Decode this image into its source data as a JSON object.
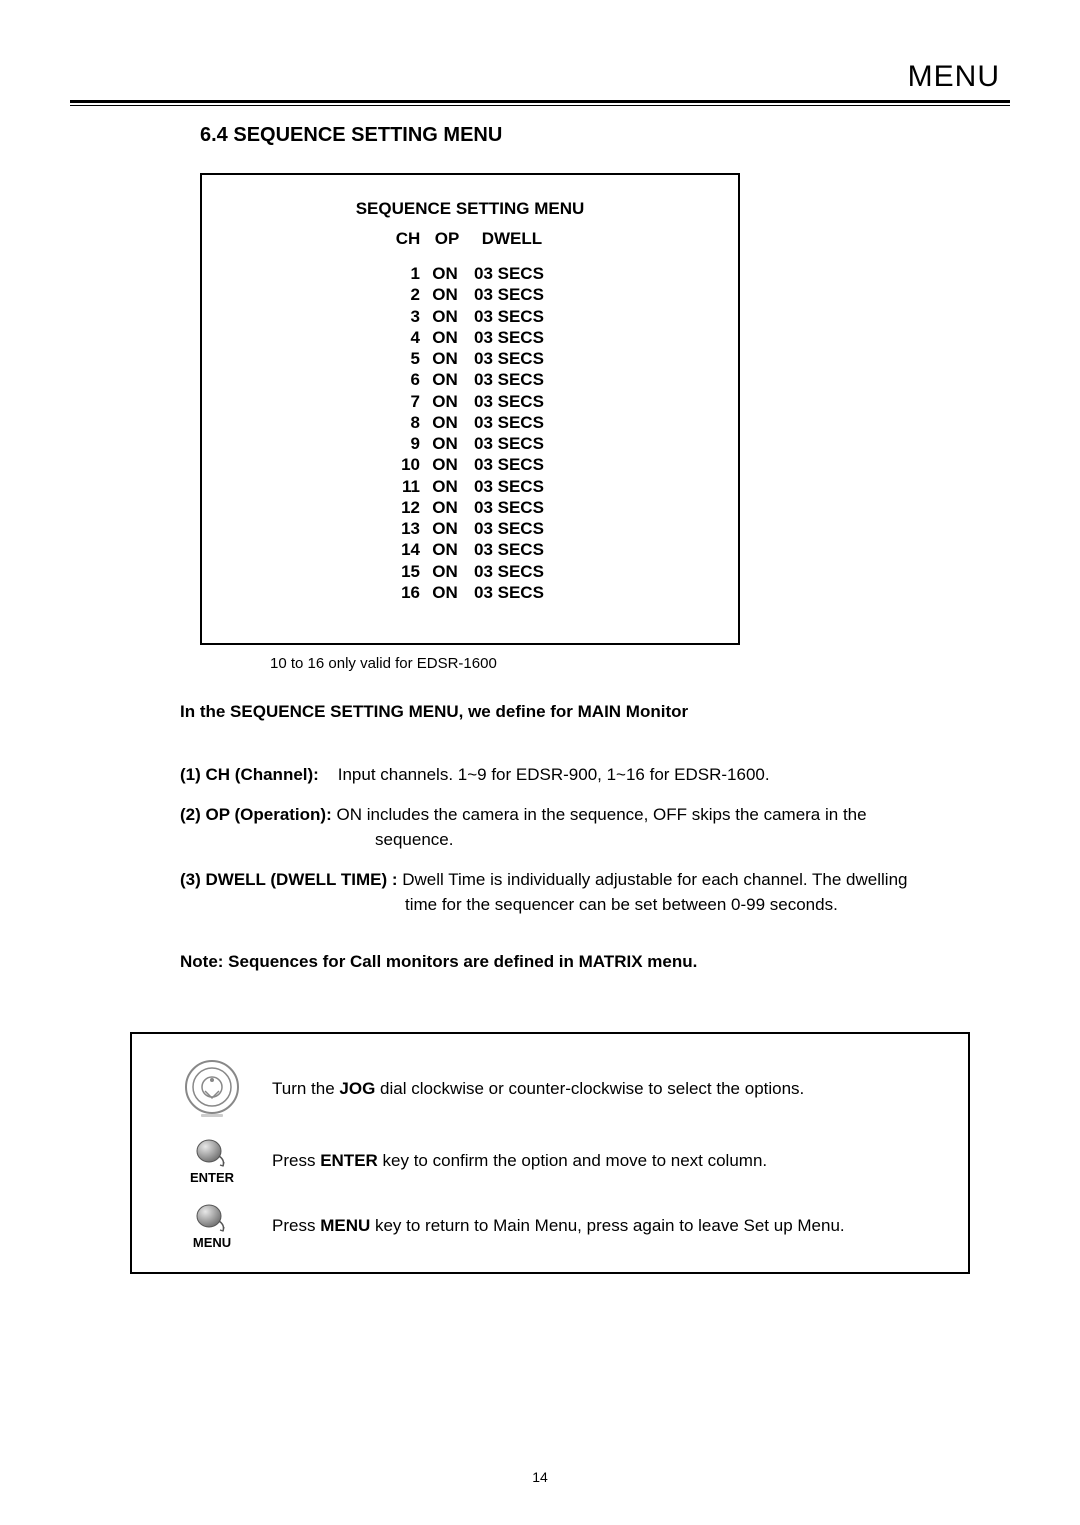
{
  "header": {
    "label": "MENU"
  },
  "section": {
    "number": "6.4",
    "title": "SEQUENCE SETTING MENU"
  },
  "menu_box": {
    "title": "SEQUENCE SETTING MENU",
    "columns": {
      "ch": "CH",
      "op": "OP",
      "dwell": "DWELL"
    },
    "rows": [
      {
        "ch": "1",
        "op": "ON",
        "dwell": "03 SECS"
      },
      {
        "ch": "2",
        "op": "ON",
        "dwell": "03 SECS"
      },
      {
        "ch": "3",
        "op": "ON",
        "dwell": "03 SECS"
      },
      {
        "ch": "4",
        "op": "ON",
        "dwell": "03 SECS"
      },
      {
        "ch": "5",
        "op": "ON",
        "dwell": "03 SECS"
      },
      {
        "ch": "6",
        "op": "ON",
        "dwell": "03 SECS"
      },
      {
        "ch": "7",
        "op": "ON",
        "dwell": "03 SECS"
      },
      {
        "ch": "8",
        "op": "ON",
        "dwell": "03 SECS"
      },
      {
        "ch": "9",
        "op": "ON",
        "dwell": "03 SECS"
      },
      {
        "ch": "10",
        "op": "ON",
        "dwell": "03 SECS"
      },
      {
        "ch": "11",
        "op": "ON",
        "dwell": "03 SECS"
      },
      {
        "ch": "12",
        "op": "ON",
        "dwell": "03 SECS"
      },
      {
        "ch": "13",
        "op": "ON",
        "dwell": "03 SECS"
      },
      {
        "ch": "14",
        "op": "ON",
        "dwell": "03 SECS"
      },
      {
        "ch": "15",
        "op": "ON",
        "dwell": "03 SECS"
      },
      {
        "ch": "16",
        "op": "ON",
        "dwell": "03 SECS"
      }
    ]
  },
  "caption": "10 to 16 only valid for EDSR-1600",
  "intro": "In the SEQUENCE SETTING MENU, we define for MAIN Monitor",
  "definitions": {
    "d1": {
      "label": "(1) CH (Channel):",
      "text": "Input channels. 1~9 for EDSR-900, 1~16 for EDSR-1600."
    },
    "d2": {
      "label": "(2) OP (Operation):",
      "text1": "ON includes the camera in the sequence, OFF skips the camera in the",
      "text2": "sequence."
    },
    "d3": {
      "label": "(3) DWELL (DWELL TIME) :",
      "text1": "Dwell Time is individually adjustable for each channel. The dwelling",
      "text2": "time for the sequencer can be set between  0-99 seconds."
    }
  },
  "note": "Note: Sequences for Call monitors are defined in MATRIX menu.",
  "controls": {
    "jog": {
      "pre": "Turn the ",
      "key": "JOG",
      "post": " dial clockwise or counter-clockwise to select the options."
    },
    "enter": {
      "pre": "Press ",
      "key": "ENTER",
      "post": " key to confirm the option and move to next column.",
      "label": "ENTER"
    },
    "menu": {
      "pre": "Press ",
      "key": "MENU",
      "post": " key to return to Main Menu, press again to leave Set up Menu.",
      "label": "MENU"
    }
  },
  "page_number": "14"
}
